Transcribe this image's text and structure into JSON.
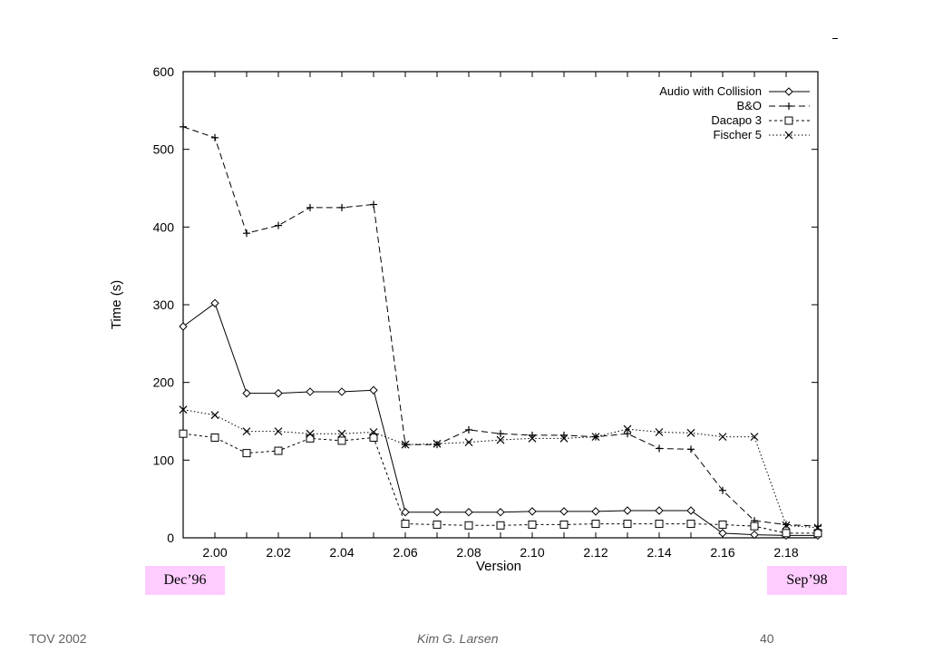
{
  "chart_data": {
    "type": "line",
    "title": "",
    "xlabel": "Version",
    "ylabel": "Time (s)",
    "xlim": [
      1.99,
      2.19
    ],
    "ylim": [
      0,
      600
    ],
    "x_ticks": [
      "2.00",
      "2.02",
      "2.04",
      "2.06",
      "2.08",
      "2.10",
      "2.12",
      "2.14",
      "2.16",
      "2.18"
    ],
    "y_ticks": [
      "0",
      "100",
      "200",
      "300",
      "400",
      "500",
      "600"
    ],
    "grid": false,
    "legend_position": "top-right",
    "x": [
      1.99,
      2.0,
      2.01,
      2.02,
      2.03,
      2.04,
      2.05,
      2.06,
      2.07,
      2.08,
      2.09,
      2.1,
      2.11,
      2.12,
      2.13,
      2.14,
      2.15,
      2.16,
      2.17,
      2.18,
      2.19
    ],
    "series": [
      {
        "name": "Audio with Collision",
        "marker": "diamond",
        "dash": "solid",
        "values": [
          272,
          302,
          186,
          186,
          188,
          188,
          190,
          33,
          33,
          33,
          33,
          34,
          34,
          34,
          35,
          35,
          35,
          6,
          4,
          3,
          3
        ]
      },
      {
        "name": "B&O",
        "marker": "plus",
        "dash": "dashed",
        "values": [
          529,
          515,
          392,
          402,
          425,
          425,
          429,
          120,
          120,
          139,
          134,
          132,
          132,
          130,
          134,
          115,
          114,
          61,
          22,
          17,
          15
        ]
      },
      {
        "name": "Dacapo 3",
        "marker": "square",
        "dash": "short-dashed",
        "values": [
          134,
          129,
          109,
          112,
          128,
          125,
          129,
          18,
          17,
          16,
          16,
          17,
          17,
          18,
          18,
          18,
          18,
          17,
          15,
          6,
          6
        ]
      },
      {
        "name": "Fischer 5",
        "marker": "cross",
        "dash": "dotted",
        "values": [
          165,
          158,
          137,
          137,
          134,
          134,
          136,
          120,
          121,
          123,
          126,
          128,
          128,
          130,
          140,
          136,
          135,
          130,
          130,
          16,
          13
        ]
      }
    ]
  },
  "date_labels": {
    "start": "Dec’96",
    "end": "Sep’98"
  },
  "footer": {
    "left": "TOV 2002",
    "center": "Kim G. Larsen",
    "right": "40"
  }
}
